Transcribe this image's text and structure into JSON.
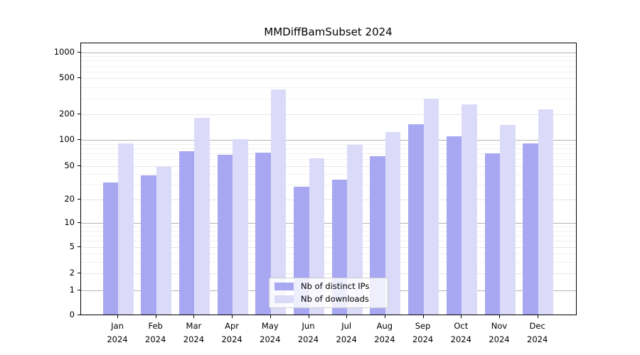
{
  "title": "MMDiffBamSubset 2024",
  "chart_data": {
    "type": "bar",
    "title": "MMDiffBamSubset 2024",
    "categories": [
      "Jan",
      "Feb",
      "Mar",
      "Apr",
      "May",
      "Jun",
      "Jul",
      "Aug",
      "Sep",
      "Oct",
      "Nov",
      "Dec"
    ],
    "year_label": "2024",
    "series": [
      {
        "name": "Nb of distinct IPs",
        "color": "#a8a8f2",
        "values": [
          31,
          38,
          73,
          66,
          70,
          28,
          34,
          64,
          150,
          109,
          68,
          90
        ]
      },
      {
        "name": "Nb of downloads",
        "color": "#dbdbf9",
        "values": [
          90,
          48,
          178,
          100,
          370,
          60,
          86,
          122,
          295,
          255,
          147,
          222
        ]
      }
    ],
    "xlabel": "",
    "ylabel": "",
    "yscale": "symlog",
    "yticks": [
      0,
      1,
      2,
      5,
      10,
      20,
      50,
      100,
      200,
      500,
      1000
    ],
    "ytick_labels": [
      "0",
      "1",
      "2",
      "5",
      "10",
      "20",
      "50",
      "100",
      "200",
      "500",
      "1000"
    ],
    "ylim": [
      0,
      1270
    ],
    "grid": "on",
    "legend_position": "lower-center"
  },
  "colors": {
    "bar_distinct_ips": "#a8a8f2",
    "bar_downloads": "#dbdbf9",
    "grid_major": "#b3b3b3",
    "grid_light": "#e5e5e5",
    "grid_minor": "#f1f1f1",
    "axis_frame": "#000000",
    "legend_border": "#cccccc"
  }
}
